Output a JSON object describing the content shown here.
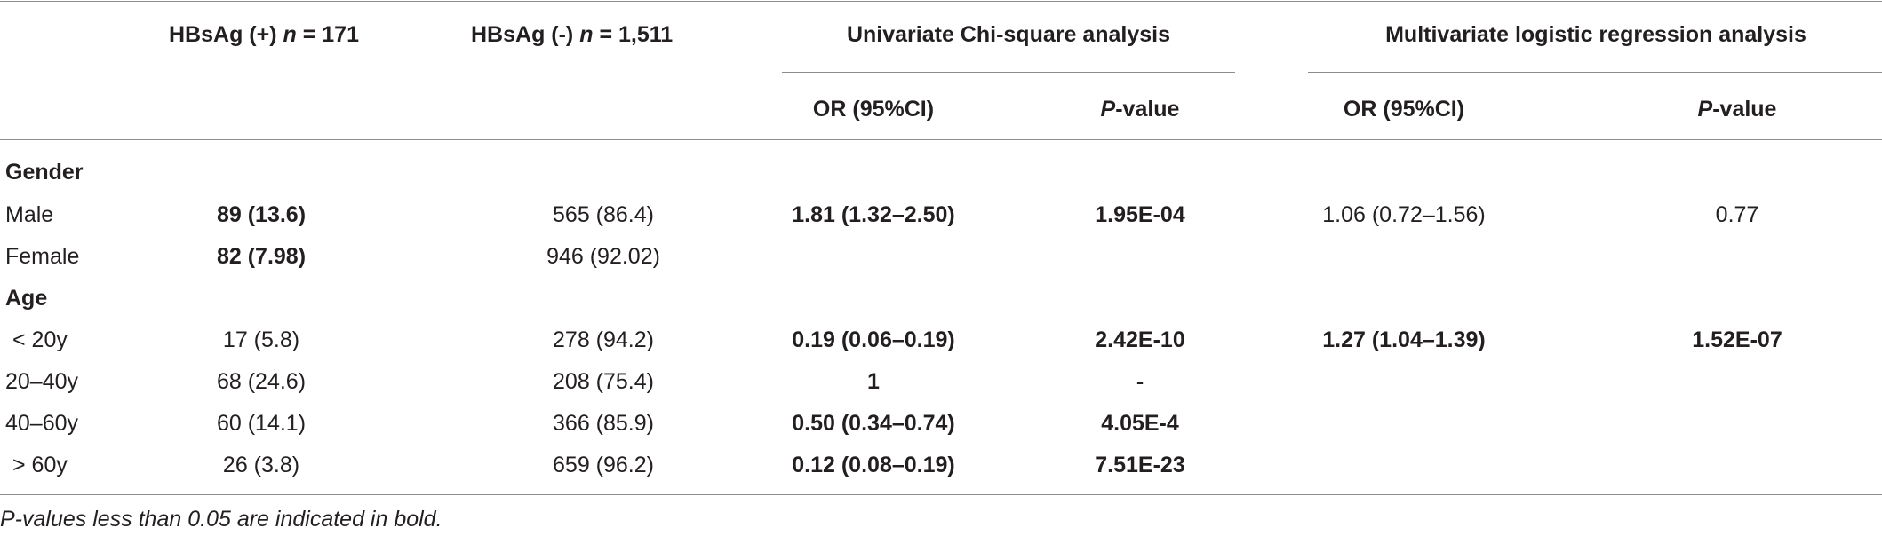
{
  "header": {
    "col1": {
      "prefix": "HBsAg (+) ",
      "n": "n",
      "suffix": " = 171"
    },
    "col2": {
      "prefix": "HBsAg (-) ",
      "n": "n",
      "suffix": " = 1,511"
    },
    "univariate": "Univariate Chi-square analysis",
    "multivariate": "Multivariate logistic regression analysis",
    "sub_or_1": "OR (95%CI)",
    "sub_p_1": {
      "p": "P",
      "rest": "-value"
    },
    "sub_or_2": "OR (95%CI)",
    "sub_p_2": {
      "p": "P",
      "rest": "-value"
    }
  },
  "sections": {
    "gender": "Gender",
    "age": "Age"
  },
  "rows": {
    "male": {
      "label": "Male",
      "pos": "89 (13.6)",
      "neg": "565 (86.4)",
      "u_or": "1.81 (1.32–2.50)",
      "u_p": "1.95E-04",
      "m_or": "1.06 (0.72–1.56)",
      "m_p": "0.77"
    },
    "female": {
      "label": "Female",
      "pos": "82 (7.98)",
      "neg": "946 (92.02)"
    },
    "lt20": {
      "label": "< 20y",
      "pos": "17 (5.8)",
      "neg": "278 (94.2)",
      "u_or": "0.19 (0.06–0.19)",
      "u_p": "2.42E-10",
      "m_or": "1.27 (1.04–1.39)",
      "m_p": "1.52E-07"
    },
    "a20_40": {
      "label": "20–40y",
      "pos": "68 (24.6)",
      "neg": "208 (75.4)",
      "u_or": "1",
      "u_p": "-"
    },
    "a40_60": {
      "label": "40–60y",
      "pos": "60 (14.1)",
      "neg": "366 (85.9)",
      "u_or": "0.50 (0.34–0.74)",
      "u_p": "4.05E-4"
    },
    "gt60": {
      "label": "> 60y",
      "pos": "26 (3.8)",
      "neg": "659 (96.2)",
      "u_or": "0.12 (0.08–0.19)",
      "u_p": "7.51E-23"
    }
  },
  "footnote": "P-values less than 0.05 are indicated in bold."
}
